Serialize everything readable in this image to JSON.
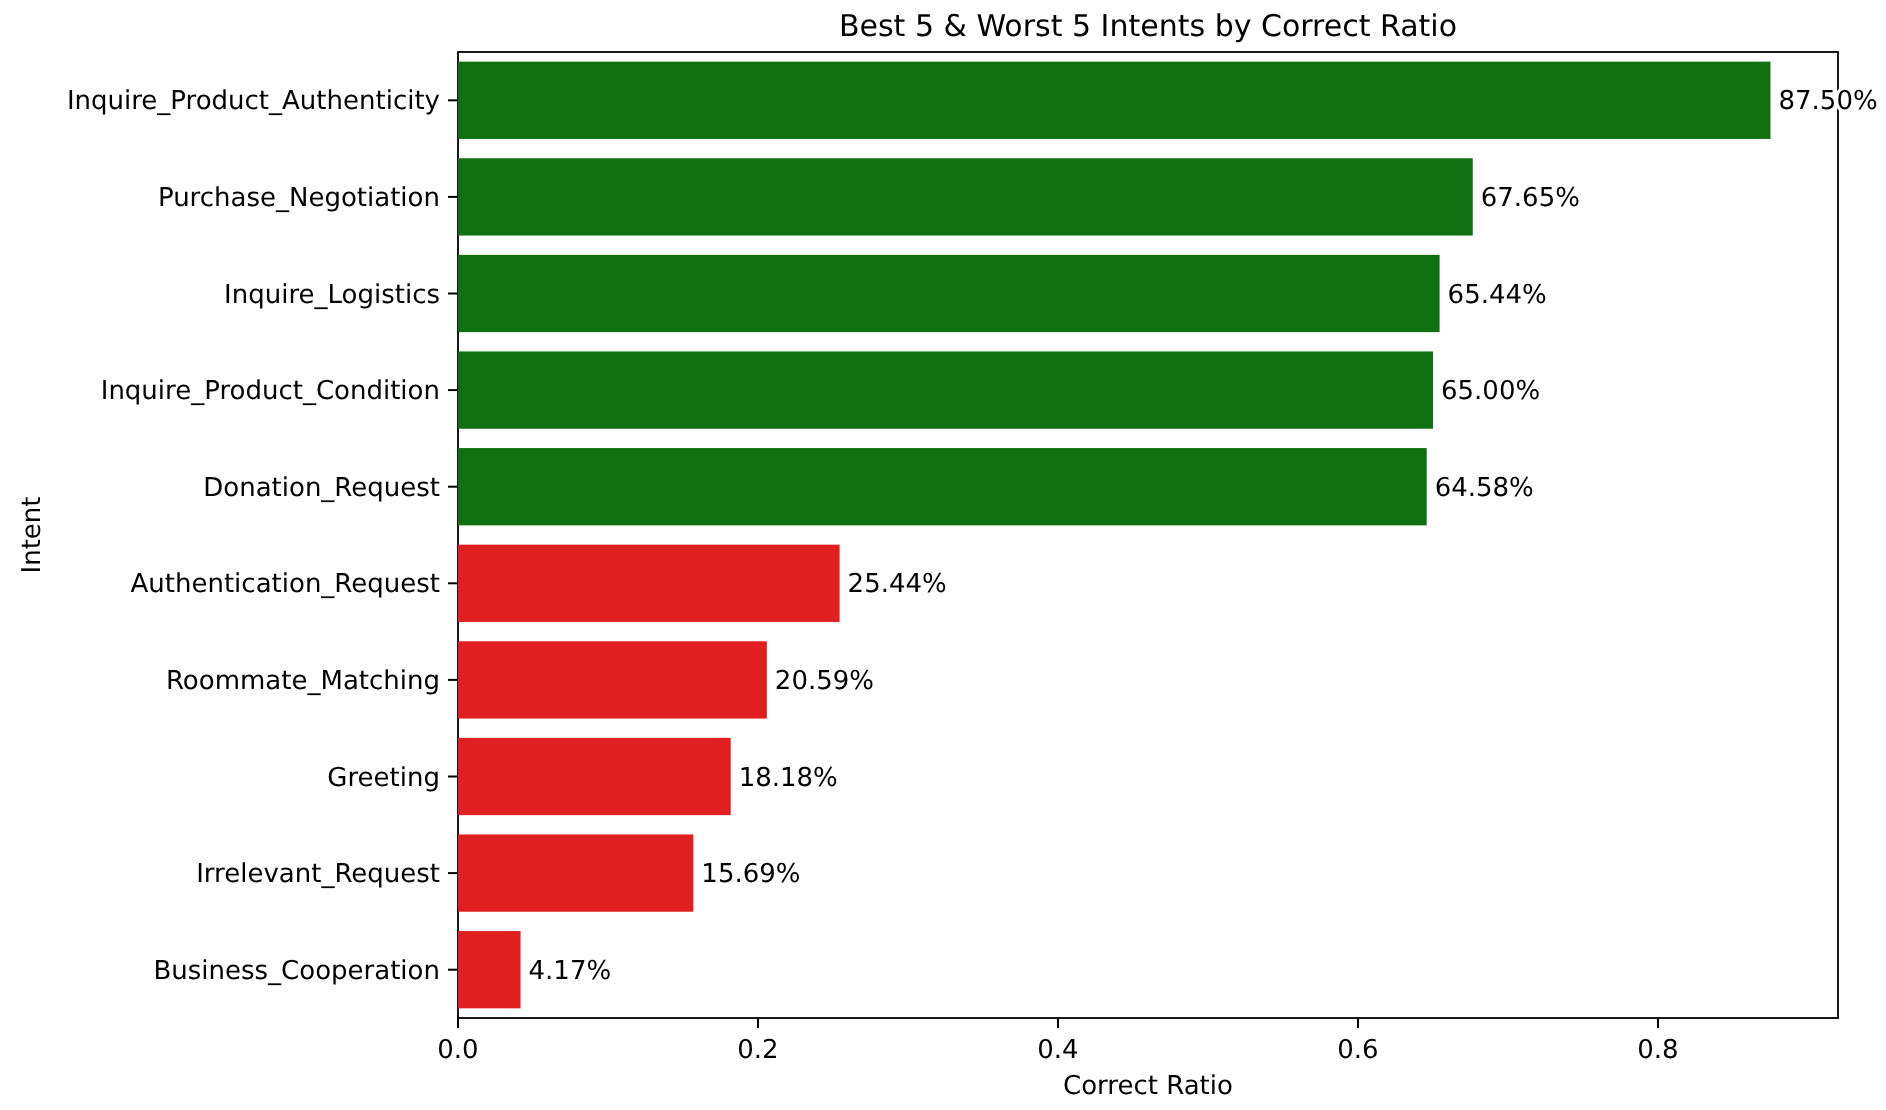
{
  "chart_data": {
    "type": "bar",
    "orientation": "horizontal",
    "title": "Best 5 & Worst 5 Intents by Correct Ratio",
    "xlabel": "Correct Ratio",
    "ylabel": "Intent",
    "categories": [
      "Inquire_Product_Authenticity",
      "Purchase_Negotiation",
      "Inquire_Logistics",
      "Inquire_Product_Condition",
      "Donation_Request",
      "Authentication_Request",
      "Roommate_Matching",
      "Greeting",
      "Irrelevant_Request",
      "Business_Cooperation"
    ],
    "values": [
      0.875,
      0.6765,
      0.6544,
      0.65,
      0.6458,
      0.2544,
      0.2059,
      0.1818,
      0.1569,
      0.0417
    ],
    "colors": [
      "#0f7010",
      "#0f7010",
      "#0f7010",
      "#0f7010",
      "#0f7010",
      "#e02020",
      "#e02020",
      "#e02020",
      "#e02020",
      "#e02020"
    ],
    "value_labels": [
      "87.50%",
      "67.65%",
      "65.44%",
      "65.00%",
      "64.58%",
      "25.44%",
      "20.59%",
      "18.18%",
      "15.69%",
      "4.17%"
    ],
    "xlim": [
      0,
      0.92
    ],
    "xticks": [
      {
        "value": 0,
        "label": "0.0"
      },
      0.2,
      0.4,
      0.6,
      0.8
    ],
    "grid": false
  }
}
